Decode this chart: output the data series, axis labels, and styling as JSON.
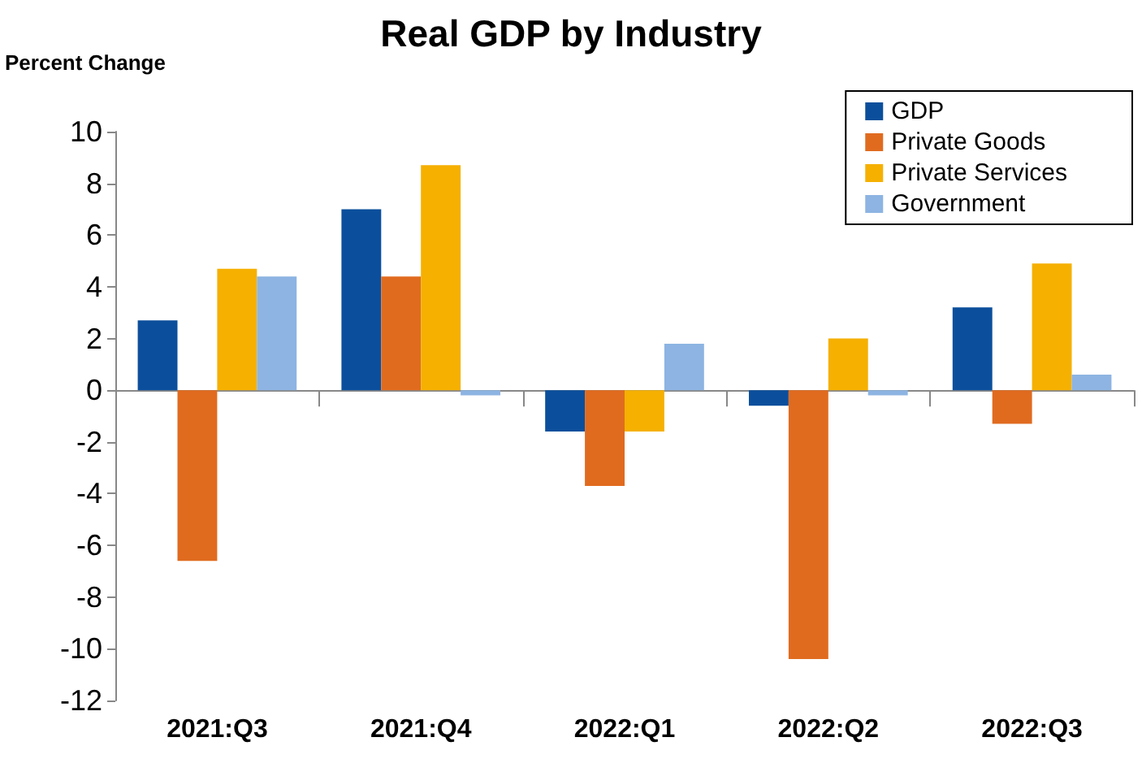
{
  "chart_data": {
    "type": "bar",
    "title": "Real GDP by Industry",
    "ylabel": "Percent Change",
    "categories": [
      "2021:Q3",
      "2021:Q4",
      "2022:Q1",
      "2022:Q2",
      "2022:Q3"
    ],
    "series": [
      {
        "name": "GDP",
        "color": "#0b4f9c",
        "values": [
          2.7,
          7.0,
          -1.6,
          -0.6,
          3.2
        ]
      },
      {
        "name": "Private Goods",
        "color": "#e06b1f",
        "values": [
          -6.6,
          4.4,
          -3.7,
          -10.4,
          -1.3
        ]
      },
      {
        "name": "Private Services",
        "color": "#f5b000",
        "values": [
          4.7,
          8.7,
          -1.6,
          2.0,
          4.9
        ]
      },
      {
        "name": "Government",
        "color": "#8db4e2",
        "values": [
          4.4,
          -0.2,
          1.8,
          -0.2,
          0.6
        ]
      }
    ],
    "ylim": [
      -12,
      10
    ],
    "yticks": [
      -12,
      -10,
      -8,
      -6,
      -4,
      -2,
      0,
      2,
      4,
      6,
      8,
      10
    ],
    "legend": "top right"
  }
}
